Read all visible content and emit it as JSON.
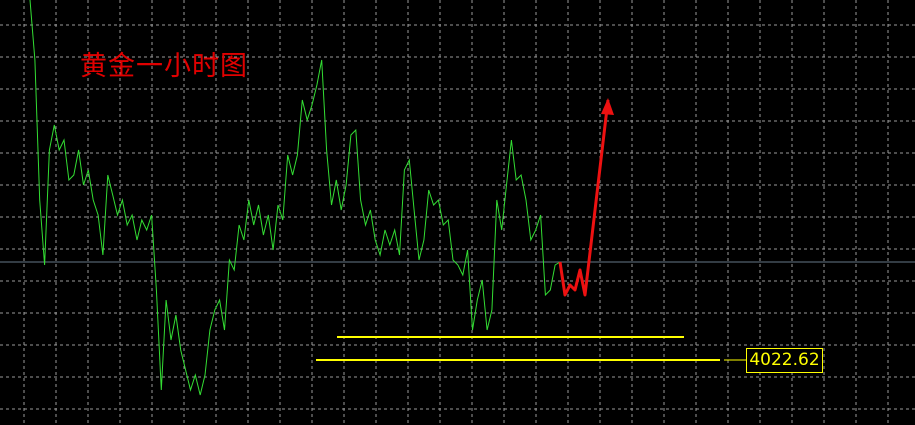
{
  "chart_data": {
    "type": "line",
    "title": "黄金一小时图",
    "grid": true,
    "colors": {
      "background": "#000000",
      "price": "#33dd33",
      "projection": "#ee1111",
      "levels": "#ffff00",
      "grid": "#9a9a9a",
      "current_line": "#667788"
    },
    "series": [
      {
        "values": [
          4202.6,
          4172.6,
          4102.6,
          4070.1,
          4127.6,
          4140.1,
          4127.6,
          4132.6,
          4112.6,
          4115.1,
          4127.6,
          4110.1,
          4117.6,
          4102.6,
          4095.1,
          4075.1,
          4115.1,
          4105.1,
          4095.1,
          4102.6,
          4090.1,
          4095.1,
          4082.6,
          4092.6,
          4087.6,
          4095.1,
          4057.6,
          4007.6,
          4052.6,
          4032.6,
          4045.1,
          4027.6,
          4017.6,
          4007.6,
          4015.1,
          4005.1,
          4015.1,
          4037.6,
          4047.6,
          4052.6,
          4037.6,
          4072.6,
          4067.6,
          4090.1,
          4082.6,
          4102.6,
          4090.1,
          4100.1,
          4085.1,
          4095.1,
          4077.6,
          4100.1,
          4092.6,
          4125.1,
          4115.1,
          4125.1,
          4152.6,
          4142.6,
          4150.1,
          4160.1,
          4172.6,
          4127.6,
          4100.1,
          4112.6,
          4097.6,
          4110.1,
          4135.1,
          4137.6,
          4102.6,
          4090.1,
          4097.6,
          4082.6,
          4075.1,
          4087.6,
          4080.1,
          4087.6,
          4075.1,
          4117.6,
          4122.6,
          4097.6,
          4072.6,
          4082.6,
          4107.6,
          4100.1,
          4102.6,
          4090.1,
          4092.6,
          4072.6,
          4070.1,
          4065.1,
          4077.6,
          4037.6,
          4052.6,
          4062.6,
          4037.6,
          4047.6,
          4102.6,
          4087.6,
          4110.1,
          4132.6,
          4112.6,
          4115.1,
          4102.6,
          4082.6,
          4087.6,
          4095.1,
          4055.1,
          4057.6,
          4070.1,
          4071.6
        ]
      },
      {
        "values": [
          4071.6,
          4055.1,
          4060.1,
          4057.6,
          4067.6,
          4055.1,
          4152.6
        ]
      }
    ],
    "levels": [
      4034.1,
      4022.62
    ],
    "current_price": 4071.6,
    "price_label": "4022.62"
  }
}
